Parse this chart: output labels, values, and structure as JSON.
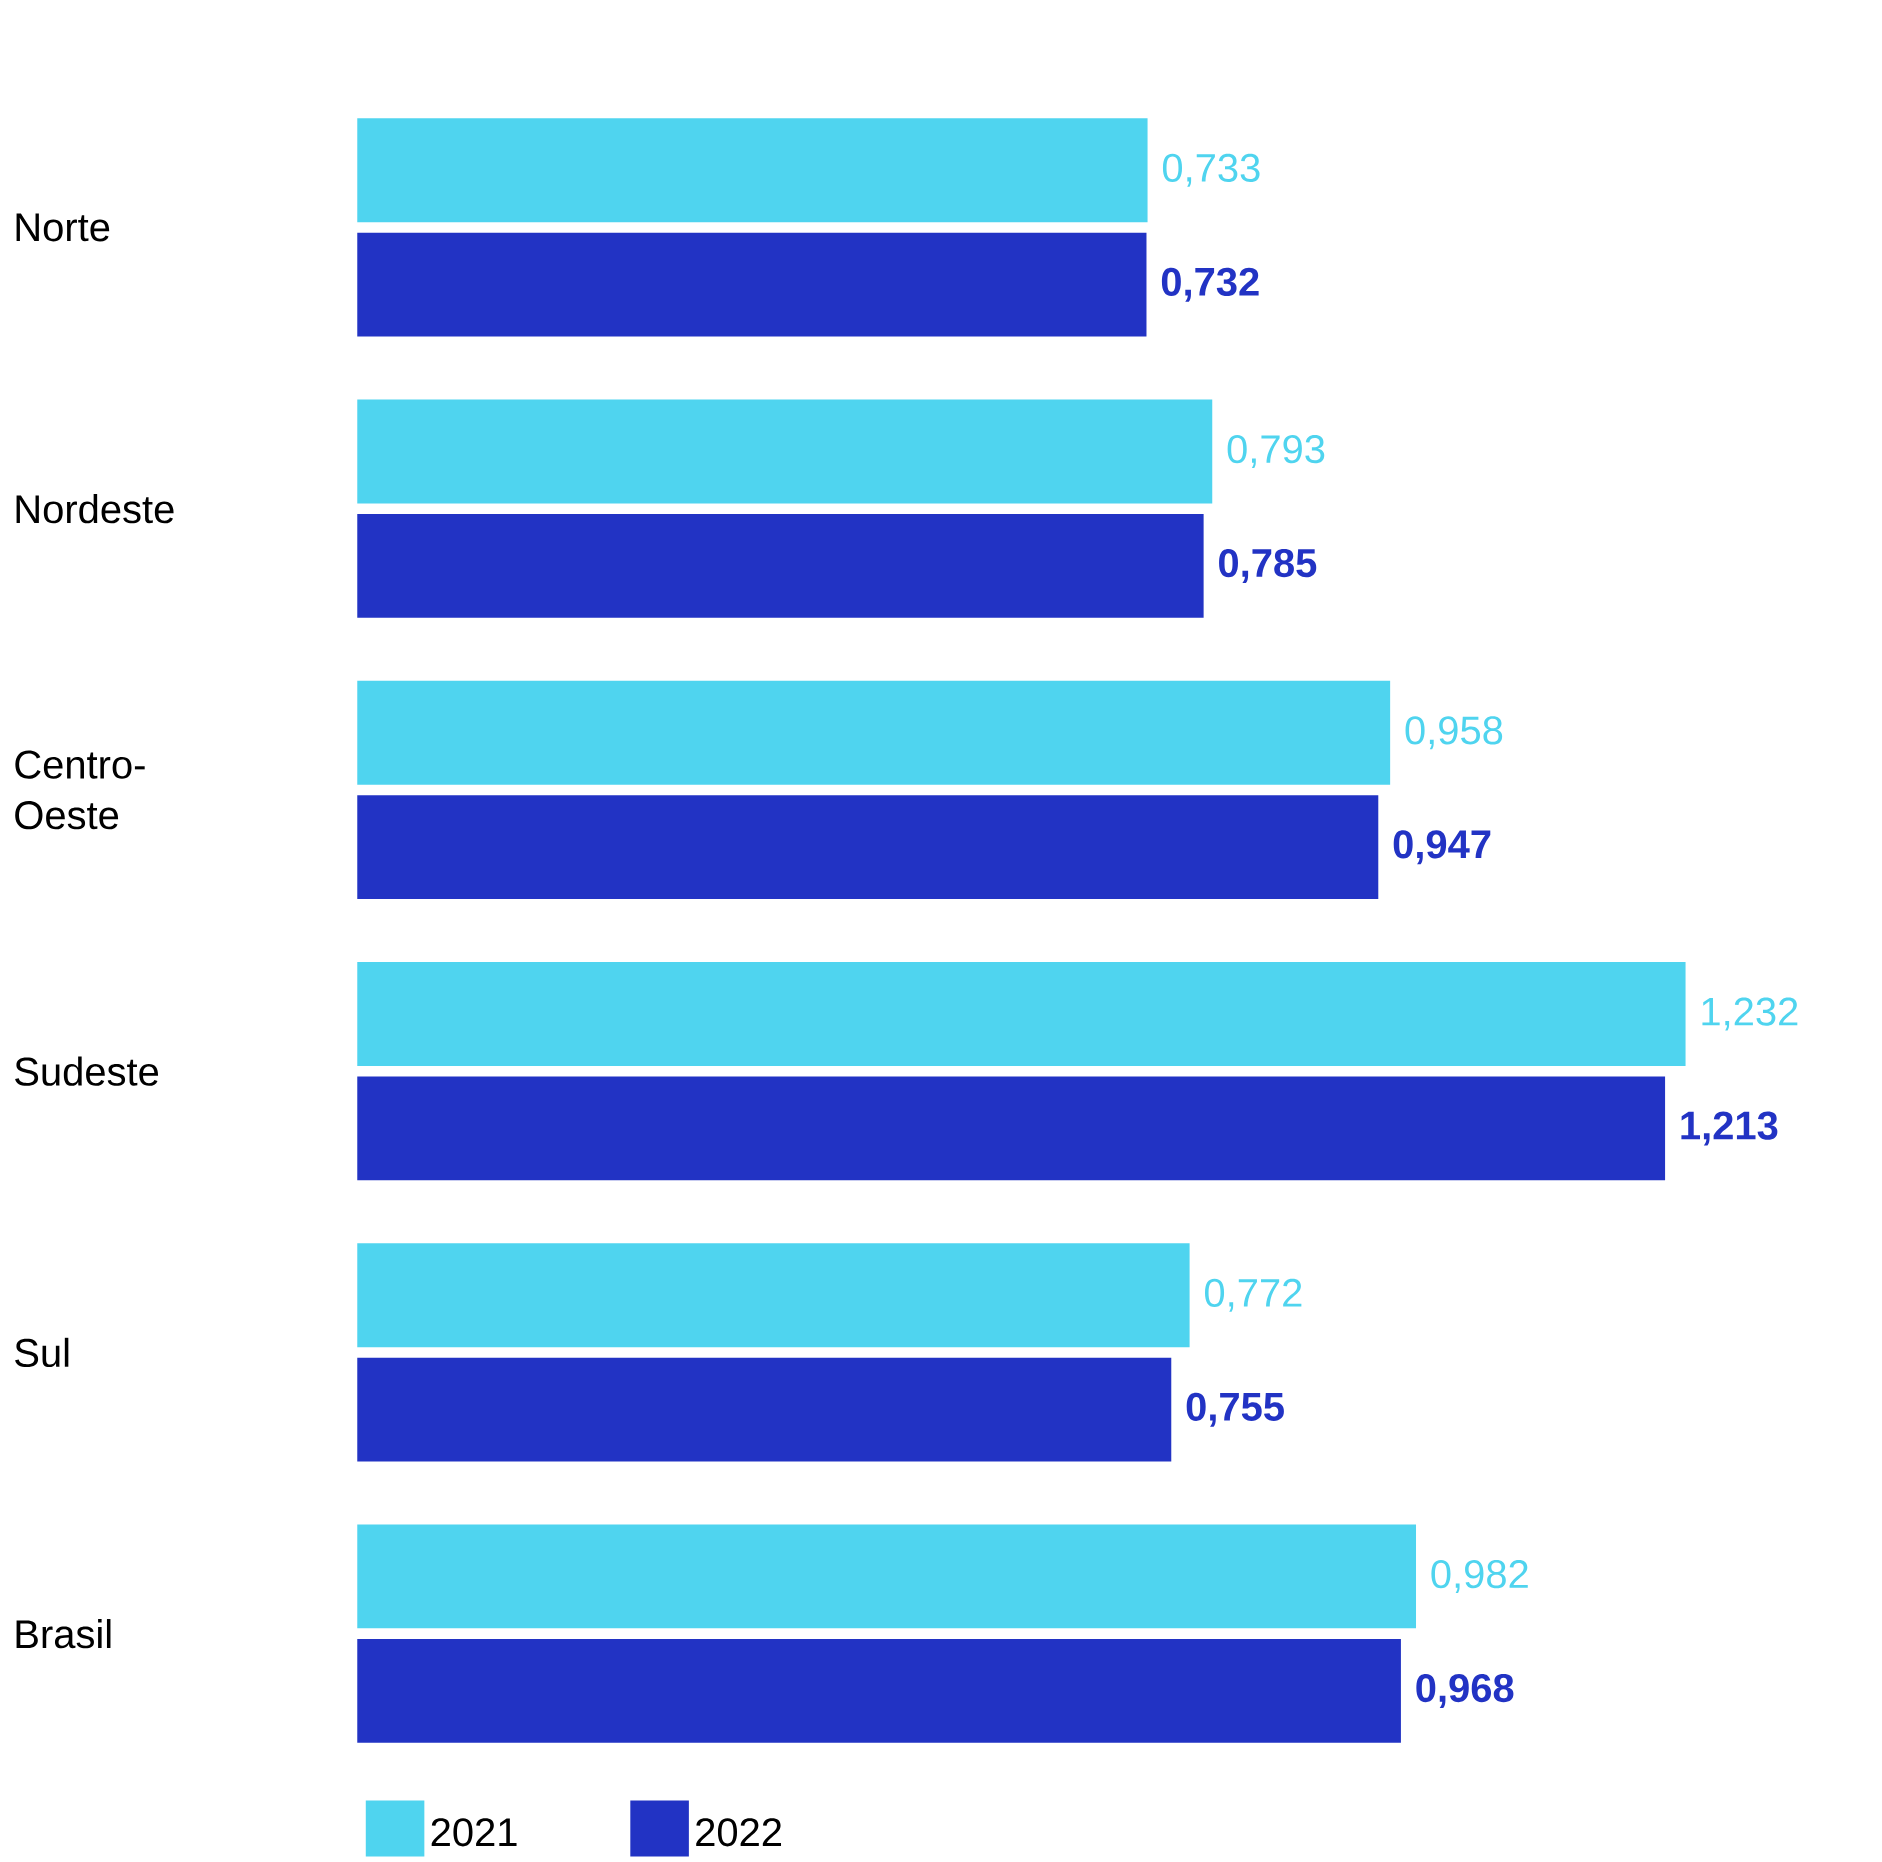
{
  "chart_data": {
    "type": "bar",
    "orientation": "horizontal",
    "categories": [
      "Norte",
      "Nordeste",
      "Centro-Oeste",
      "Sudeste",
      "Sul",
      "Brasil"
    ],
    "series": [
      {
        "name": "2021",
        "color": "#4fd4ef",
        "values": [
          0.733,
          0.793,
          0.958,
          1.232,
          0.772,
          0.982
        ],
        "value_labels": [
          "0,733",
          "0,793",
          "0,958",
          "1,232",
          "0,772",
          "0,982"
        ]
      },
      {
        "name": "2022",
        "color": "#2233c4",
        "values": [
          0.732,
          0.785,
          0.947,
          1.213,
          0.755,
          0.968
        ],
        "value_labels": [
          "0,732",
          "0,785",
          "0,947",
          "1,213",
          "0,755",
          "0,968"
        ]
      }
    ],
    "legend": "bottom left"
  }
}
